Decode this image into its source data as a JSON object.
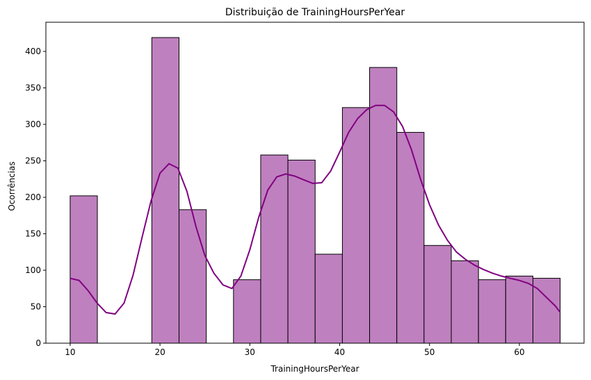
{
  "chart_data": {
    "type": "bar",
    "title": "Distribuição de TrainingHoursPerYear",
    "xlabel": "TrainingHoursPerYear",
    "ylabel": "Ocorrências",
    "xlim": [
      7.3,
      67.2
    ],
    "ylim": [
      0,
      440
    ],
    "xticks": [
      10,
      20,
      30,
      40,
      50,
      60
    ],
    "yticks": [
      0,
      50,
      100,
      150,
      200,
      250,
      300,
      350,
      400
    ],
    "grid": false,
    "bar_color": "#bf80bf",
    "edge_color": "#000000",
    "kde_color": "#800080",
    "bins": [
      {
        "start": 10.0,
        "end": 13.03,
        "count": 202
      },
      {
        "start": 13.03,
        "end": 16.06,
        "count": 0
      },
      {
        "start": 16.06,
        "end": 19.09,
        "count": 0
      },
      {
        "start": 19.09,
        "end": 22.12,
        "count": 419
      },
      {
        "start": 22.12,
        "end": 25.15,
        "count": 183
      },
      {
        "start": 25.15,
        "end": 28.18,
        "count": 0
      },
      {
        "start": 28.18,
        "end": 31.21,
        "count": 87
      },
      {
        "start": 31.21,
        "end": 34.24,
        "count": 258
      },
      {
        "start": 34.24,
        "end": 37.27,
        "count": 251
      },
      {
        "start": 37.27,
        "end": 40.3,
        "count": 122
      },
      {
        "start": 40.3,
        "end": 43.33,
        "count": 323
      },
      {
        "start": 43.33,
        "end": 46.36,
        "count": 378
      },
      {
        "start": 46.36,
        "end": 49.39,
        "count": 289
      },
      {
        "start": 49.39,
        "end": 52.42,
        "count": 134
      },
      {
        "start": 52.42,
        "end": 55.45,
        "count": 113
      },
      {
        "start": 55.45,
        "end": 58.48,
        "count": 87
      },
      {
        "start": 58.48,
        "end": 61.51,
        "count": 92
      },
      {
        "start": 61.51,
        "end": 64.54,
        "count": 89
      }
    ],
    "kde": {
      "x": [
        10,
        11,
        12,
        13,
        14,
        15,
        16,
        17,
        18,
        19,
        20,
        21,
        22,
        23,
        24,
        25,
        26,
        27,
        28,
        29,
        30,
        31,
        32,
        33,
        34,
        35,
        36,
        37,
        38,
        39,
        40,
        41,
        42,
        43,
        44,
        45,
        46,
        47,
        48,
        49,
        50,
        51,
        52,
        53,
        54,
        55,
        56,
        57,
        58,
        59,
        60,
        61,
        62,
        63,
        64,
        64.5
      ],
      "y": [
        89,
        86,
        72,
        55,
        42,
        40,
        55,
        93,
        145,
        195,
        233,
        246,
        240,
        208,
        160,
        120,
        96,
        80,
        75,
        92,
        128,
        173,
        210,
        228,
        232,
        229,
        224,
        219,
        220,
        236,
        262,
        289,
        308,
        320,
        326,
        326,
        317,
        297,
        265,
        225,
        190,
        162,
        141,
        125,
        115,
        107,
        101,
        96,
        92,
        89,
        86,
        82,
        75,
        63,
        51,
        43
      ]
    }
  }
}
